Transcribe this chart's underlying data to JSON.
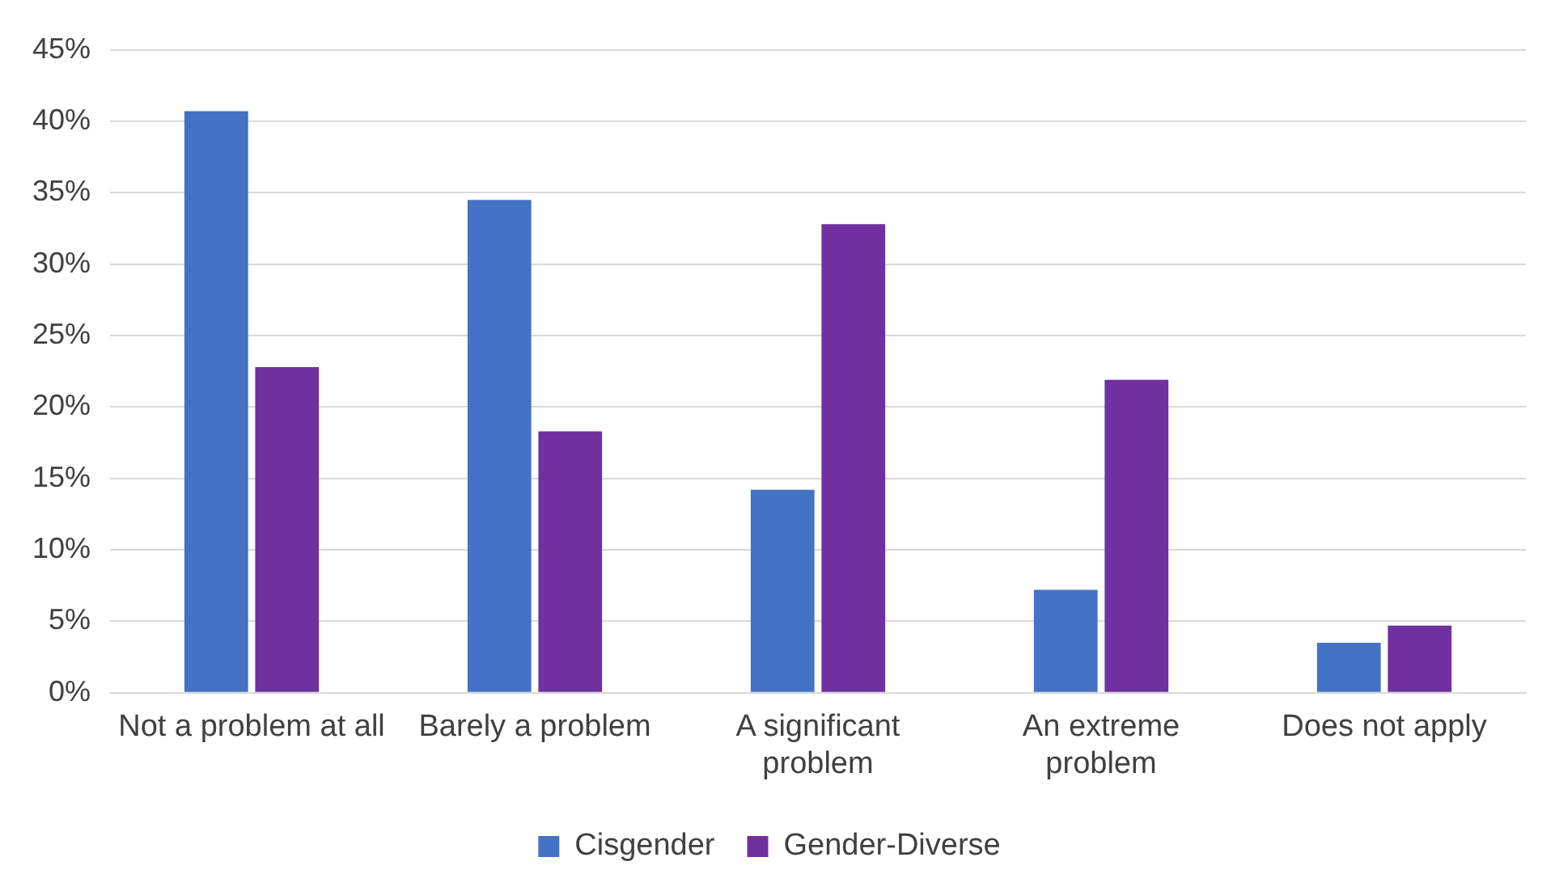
{
  "chart_data": {
    "type": "bar",
    "categories": [
      "Not a problem at all",
      "Barely a problem",
      "A significant problem",
      "An extreme problem",
      "Does not apply"
    ],
    "series": [
      {
        "name": "Cisgender",
        "color": "#4472c4",
        "values": [
          40.7,
          34.5,
          14.2,
          7.2,
          3.5
        ]
      },
      {
        "name": "Gender-Diverse",
        "color": "#7030a0",
        "values": [
          22.8,
          18.3,
          32.8,
          21.9,
          4.7
        ]
      }
    ],
    "ylim": [
      0,
      45
    ],
    "yticks": [
      {
        "value": 0,
        "label": "0%"
      },
      {
        "value": 5,
        "label": "5%"
      },
      {
        "value": 10,
        "label": "10%"
      },
      {
        "value": 15,
        "label": "15%"
      },
      {
        "value": 20,
        "label": "20%"
      },
      {
        "value": 25,
        "label": "25%"
      },
      {
        "value": 30,
        "label": "30%"
      },
      {
        "value": 35,
        "label": "35%"
      },
      {
        "value": 40,
        "label": "40%"
      },
      {
        "value": 45,
        "label": "45%"
      }
    ],
    "grid": "y",
    "legend": "bottom"
  }
}
